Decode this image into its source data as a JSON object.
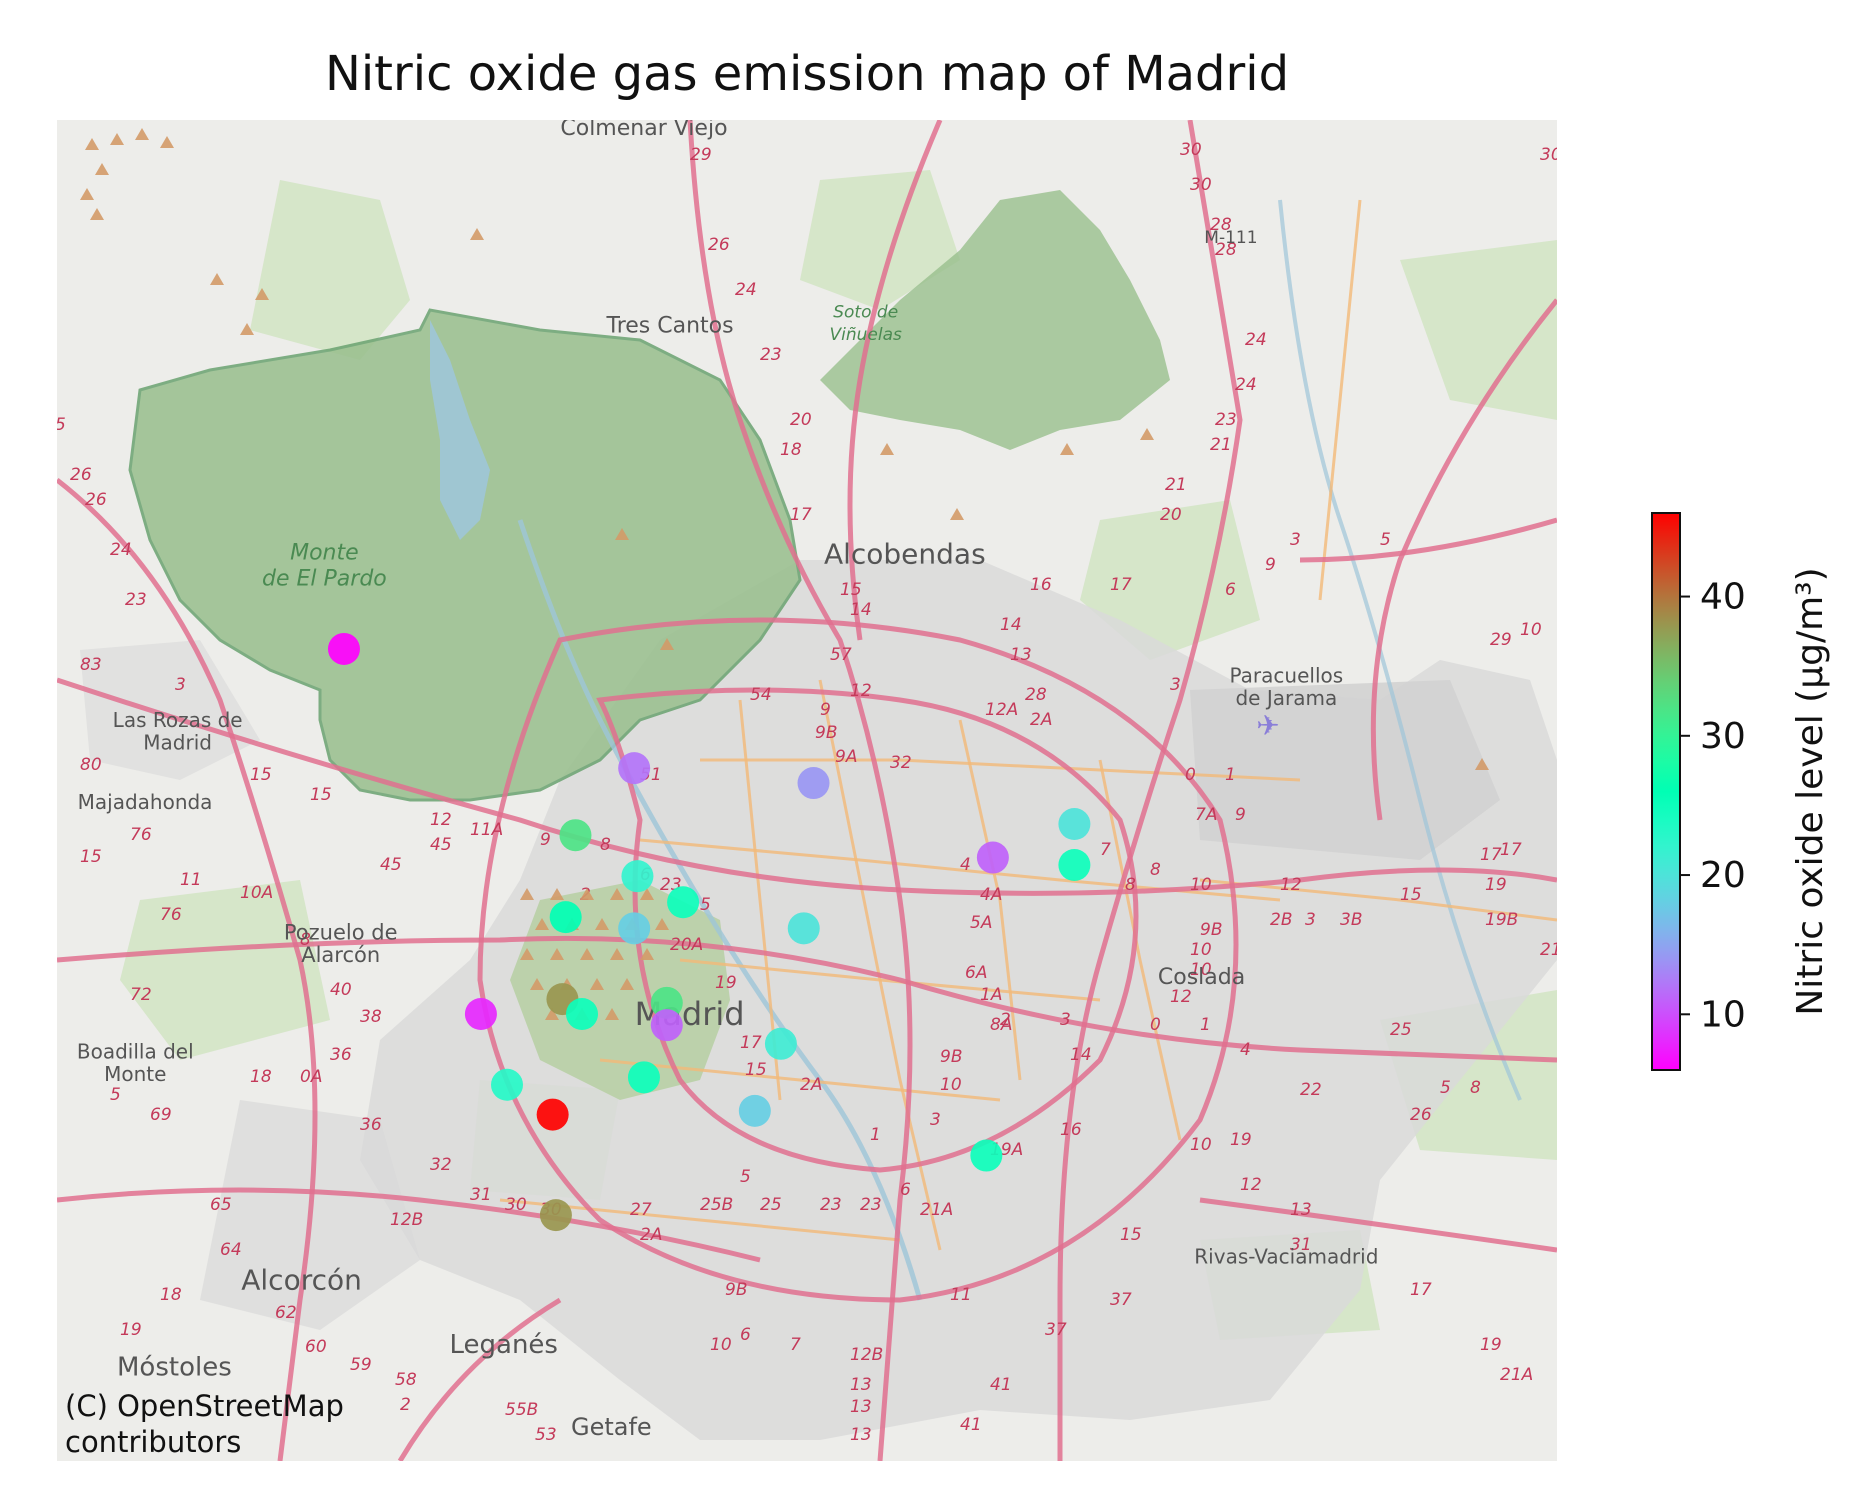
{
  "title": "Nitric oxide gas emission map of Madrid",
  "attribution": [
    "(C) OpenStreetMap",
    "contributors"
  ],
  "places": [
    {
      "name": "Colmenar Viejo",
      "lon": -3.72,
      "lat": 40.656,
      "size": 22
    },
    {
      "name": "Tres Cantos",
      "lon": -3.712,
      "lat": 40.603,
      "size": 22
    },
    {
      "name": "Alcobendas",
      "lon": -3.64,
      "lat": 40.541,
      "size": 28
    },
    {
      "name": "Paracuellos",
      "lon": -3.523,
      "lat": 40.509,
      "size": 20
    },
    {
      "name": "de Jarama",
      "lon": -3.523,
      "lat": 40.503,
      "size": 20
    },
    {
      "name": "Las Rozas de",
      "lon": -3.863,
      "lat": 40.497,
      "size": 20
    },
    {
      "name": "Madrid",
      "lon": -3.863,
      "lat": 40.491,
      "size": 20
    },
    {
      "name": "Majadahonda",
      "lon": -3.873,
      "lat": 40.475,
      "size": 20
    },
    {
      "name": "Pozuelo de",
      "lon": -3.813,
      "lat": 40.44,
      "size": 21
    },
    {
      "name": "Alarcón",
      "lon": -3.813,
      "lat": 40.434,
      "size": 21
    },
    {
      "name": "Coslada",
      "lon": -3.549,
      "lat": 40.428,
      "size": 22
    },
    {
      "name": "Madrid",
      "lon": -3.706,
      "lat": 40.417,
      "size": 32
    },
    {
      "name": "Boadilla del",
      "lon": -3.876,
      "lat": 40.408,
      "size": 20
    },
    {
      "name": "Monte",
      "lon": -3.876,
      "lat": 40.402,
      "size": 20
    },
    {
      "name": "Alcorcón",
      "lon": -3.825,
      "lat": 40.346,
      "size": 28
    },
    {
      "name": "Rivas-Vaciamadrid",
      "lon": -3.523,
      "lat": 40.353,
      "size": 20
    },
    {
      "name": "Móstoles",
      "lon": -3.864,
      "lat": 40.323,
      "size": 26
    },
    {
      "name": "Leganés",
      "lon": -3.763,
      "lat": 40.329,
      "size": 26
    },
    {
      "name": "Getafe",
      "lon": -3.73,
      "lat": 40.307,
      "size": 24
    },
    {
      "name": "M-111",
      "lon": -3.54,
      "lat": 40.627,
      "size": 17
    }
  ],
  "park_labels": [
    {
      "name": "Monte",
      "lon": -3.818,
      "lat": 40.542,
      "size": 22
    },
    {
      "name": "de El Pardo",
      "lon": -3.818,
      "lat": 40.535,
      "size": 22
    },
    {
      "name": "Soto de",
      "lon": -3.652,
      "lat": 40.607,
      "size": 17
    },
    {
      "name": "Viñuelas",
      "lon": -3.652,
      "lat": 40.601,
      "size": 17
    }
  ],
  "stations": [
    {
      "lon": -3.812,
      "lat": 40.518,
      "no": 6
    },
    {
      "lon": -3.723,
      "lat": 40.486,
      "no": 12
    },
    {
      "lon": -3.668,
      "lat": 40.482,
      "no": 14
    },
    {
      "lon": -3.741,
      "lat": 40.468,
      "no": 32
    },
    {
      "lon": -3.722,
      "lat": 40.457,
      "no": 22
    },
    {
      "lon": -3.708,
      "lat": 40.45,
      "no": 25
    },
    {
      "lon": -3.744,
      "lat": 40.446,
      "no": 26
    },
    {
      "lon": -3.723,
      "lat": 40.443,
      "no": 18
    },
    {
      "lon": -3.671,
      "lat": 40.443,
      "no": 20
    },
    {
      "lon": -3.745,
      "lat": 40.424,
      "no": 38
    },
    {
      "lon": -3.713,
      "lat": 40.423,
      "no": 32
    },
    {
      "lon": -3.739,
      "lat": 40.42,
      "no": 25
    },
    {
      "lon": -3.713,
      "lat": 40.417,
      "no": 11
    },
    {
      "lon": -3.77,
      "lat": 40.42,
      "no": 8
    },
    {
      "lon": -3.678,
      "lat": 40.412,
      "no": 21
    },
    {
      "lon": -3.72,
      "lat": 40.403,
      "no": 25
    },
    {
      "lon": -3.762,
      "lat": 40.401,
      "no": 23
    },
    {
      "lon": -3.748,
      "lat": 40.393,
      "no": 46
    },
    {
      "lon": -3.686,
      "lat": 40.394,
      "no": 18
    },
    {
      "lon": -3.615,
      "lat": 40.382,
      "no": 25
    },
    {
      "lon": -3.747,
      "lat": 40.366,
      "no": 38
    },
    {
      "lon": -3.613,
      "lat": 40.462,
      "no": 11
    },
    {
      "lon": -3.588,
      "lat": 40.471,
      "no": 20
    },
    {
      "lon": -3.588,
      "lat": 40.46,
      "no": 25
    }
  ],
  "colorbar": {
    "label": "Nitric oxide level (µg/m³)",
    "min": 6,
    "max": 46,
    "ticks": [
      "10",
      "20",
      "30",
      "40"
    ],
    "colormap": "rainbow"
  },
  "colors": {
    "road": "#e0708f",
    "road_minor": "#f2b978",
    "park": "#b9d2a6",
    "park_dark": "#98bf8d",
    "urban": "#d9d9d9",
    "water": "#9ec5d8",
    "background": "#ededea"
  }
}
